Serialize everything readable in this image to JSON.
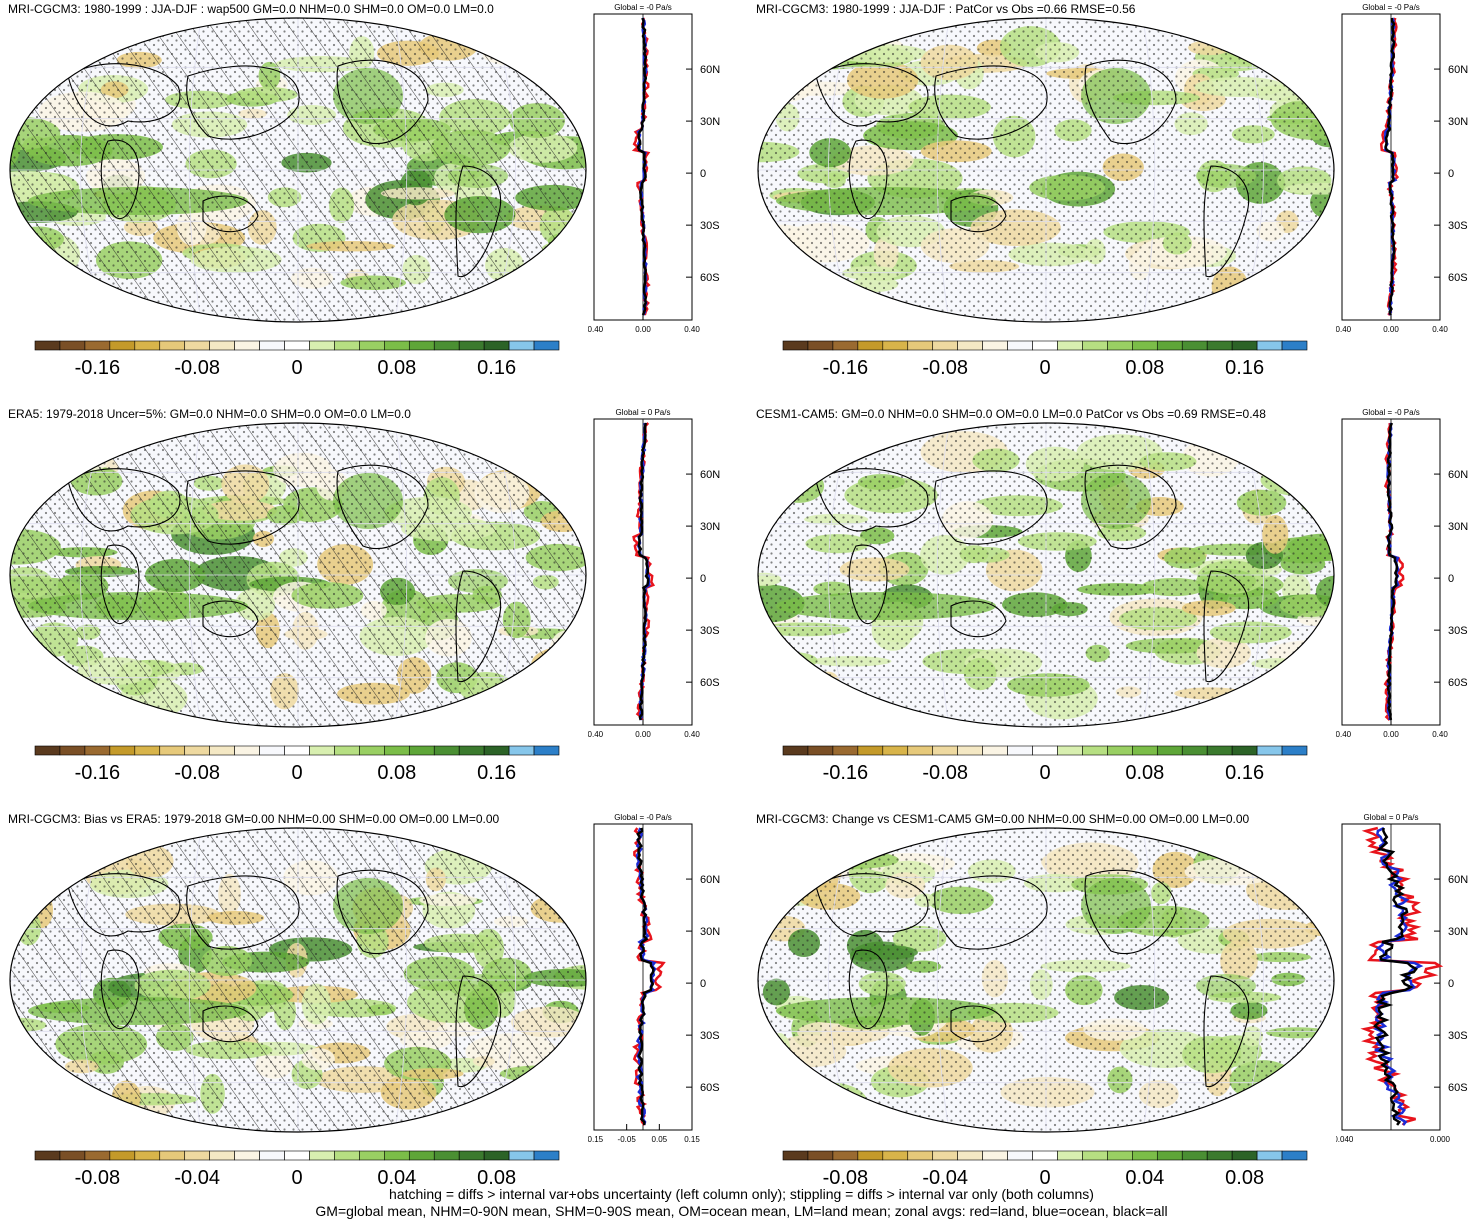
{
  "colorbar_colors": [
    "#5a3a1e",
    "#7a4f26",
    "#9a6a30",
    "#c49a2a",
    "#d8b44a",
    "#e6c97a",
    "#eed9a0",
    "#f4e8c4",
    "#faf4e4",
    "#f7f8fc",
    "#ffffff",
    "#d8efb0",
    "#b6df82",
    "#99cf63",
    "#7bbd48",
    "#5ea638",
    "#4a8f33",
    "#3b7a2e",
    "#2c6327",
    "#86c6ea",
    "#2c7fc8"
  ],
  "panels": [
    {
      "id": "p1",
      "title": "MRI-CGCM3: 1980-1999 : JJA-DJF : wap500 GM=0.0 NHM=0.0 SHM=0.0 OM=0.0 LM=0.0",
      "global_label": "Global = -0 Pa/s",
      "hatched": true,
      "x_ticks": [
        "-0.40",
        "0.00",
        "0.40"
      ],
      "cbar_labels": [
        "-0.16",
        "-0.08",
        "0",
        "0.08",
        "0.16"
      ]
    },
    {
      "id": "p2",
      "title": "MRI-CGCM3: 1980-1999 : JJA-DJF : PatCor vs Obs =0.66 RMSE=0.56",
      "global_label": "Global = -0 Pa/s",
      "hatched": false,
      "x_ticks": [
        "-0.40",
        "0.00",
        "0.40"
      ],
      "cbar_labels": [
        "-0.16",
        "-0.08",
        "0",
        "0.08",
        "0.16"
      ]
    },
    {
      "id": "p3",
      "title": "ERA5: 1979-2018 Uncer=5%: GM=0.0 NHM=0.0 SHM=0.0 OM=0.0 LM=0.0",
      "global_label": "Global = 0 Pa/s",
      "hatched": true,
      "x_ticks": [
        "-0.40",
        "0.00",
        "0.40"
      ],
      "cbar_labels": [
        "-0.16",
        "-0.08",
        "0",
        "0.08",
        "0.16"
      ]
    },
    {
      "id": "p4",
      "title": "CESM1-CAM5: GM=0.0 NHM=0.0 SHM=0.0 OM=0.0 LM=0.0 PatCor vs Obs =0.69 RMSE=0.48",
      "global_label": "Global = -0 Pa/s",
      "hatched": false,
      "x_ticks": [
        "-0.40",
        "0.00",
        "0.40"
      ],
      "cbar_labels": [
        "-0.16",
        "-0.08",
        "0",
        "0.08",
        "0.16"
      ]
    },
    {
      "id": "p5",
      "title": "MRI-CGCM3: Bias vs ERA5: 1979-2018 GM=0.00 NHM=0.00 SHM=0.00 OM=0.00 LM=0.00",
      "global_label": "Global = -0 Pa/s",
      "hatched": true,
      "x_ticks": [
        "-0.15",
        "-0.05",
        "0.05",
        "0.15"
      ],
      "cbar_labels": [
        "-0.08",
        "-0.04",
        "0",
        "0.04",
        "0.08"
      ]
    },
    {
      "id": "p6",
      "title": "MRI-CGCM3: Change vs CESM1-CAM5 GM=0.00 NHM=0.00 SHM=0.00 OM=0.00 LM=0.00",
      "global_label": "Global = 0 Pa/s",
      "hatched": false,
      "x_ticks": [
        "-0.040",
        "0.000"
      ],
      "cbar_labels": [
        "-0.08",
        "-0.04",
        "0",
        "0.04",
        "0.08"
      ]
    }
  ],
  "lat_labels": [
    "60N",
    "30N",
    "0",
    "30S",
    "60S"
  ],
  "footer": {
    "line1": "hatching = diffs > internal var+obs uncertainty (left column only); stippling = diffs > internal var only (both columns)",
    "line2": "GM=global mean, NHM=0-90N mean, SHM=0-90S mean, OM=ocean mean, LM=land mean; zonal avgs: red=land, blue=ocean, black=all"
  },
  "line_colors": {
    "land": "#e8141c",
    "ocean": "#1b2bd6",
    "all": "#000000"
  }
}
